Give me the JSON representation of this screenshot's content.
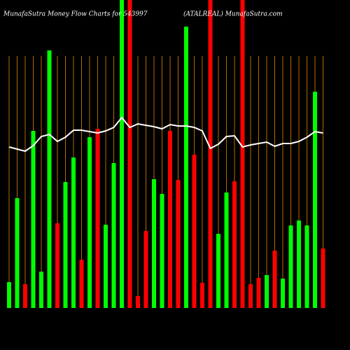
{
  "chart_data": {
    "type": "bar",
    "title": "MunafaSutra  Money Flow  Charts for 543997",
    "subtitle": "(ATALREAL) MunafaSutra.com",
    "ylim": [
      0,
      440
    ],
    "bar_colors": [
      "#00ff00",
      "#00ff00",
      "#ff0000",
      "#00ff00",
      "#00ff00",
      "#00ff00",
      "#ff0000",
      "#00ff00",
      "#00ff00",
      "#ff0000",
      "#00ff00",
      "#ff0000",
      "#00ff00",
      "#00ff00",
      "#00ff00",
      "#ff0000",
      "#ff0000",
      "#ff0000",
      "#00ff00",
      "#00ff00",
      "#ff0000",
      "#ff0000",
      "#00ff00",
      "#ff0000",
      "#ff0000",
      "#ff0000",
      "#00ff00",
      "#00ff00",
      "#ff0000",
      "#ff0000",
      "#ff0000",
      "#ff0000",
      "#00ff00",
      "#ff0000",
      "#00ff00",
      "#00ff00",
      "#00ff00",
      "#00ff00",
      "#00ff00",
      "#ff0000"
    ],
    "values": [
      37,
      157,
      34,
      253,
      52,
      368,
      121,
      180,
      215,
      69,
      244,
      256,
      119,
      207,
      440,
      440,
      17,
      110,
      184,
      163,
      253,
      183,
      402,
      219,
      36,
      440,
      106,
      165,
      181,
      440,
      34,
      43,
      47,
      82,
      42,
      118,
      125,
      118,
      309,
      85
    ],
    "line_color": "#ffffff",
    "line_values": [
      230,
      227,
      224,
      232,
      245,
      248,
      238,
      244,
      254,
      254,
      252,
      250,
      253,
      258,
      272,
      258,
      263,
      261,
      259,
      256,
      262,
      260,
      260,
      258,
      253,
      228,
      234,
      245,
      246,
      230,
      233,
      235,
      237,
      231,
      235,
      235,
      238,
      244,
      252,
      250
    ],
    "gridline_color": "#b36b00"
  }
}
